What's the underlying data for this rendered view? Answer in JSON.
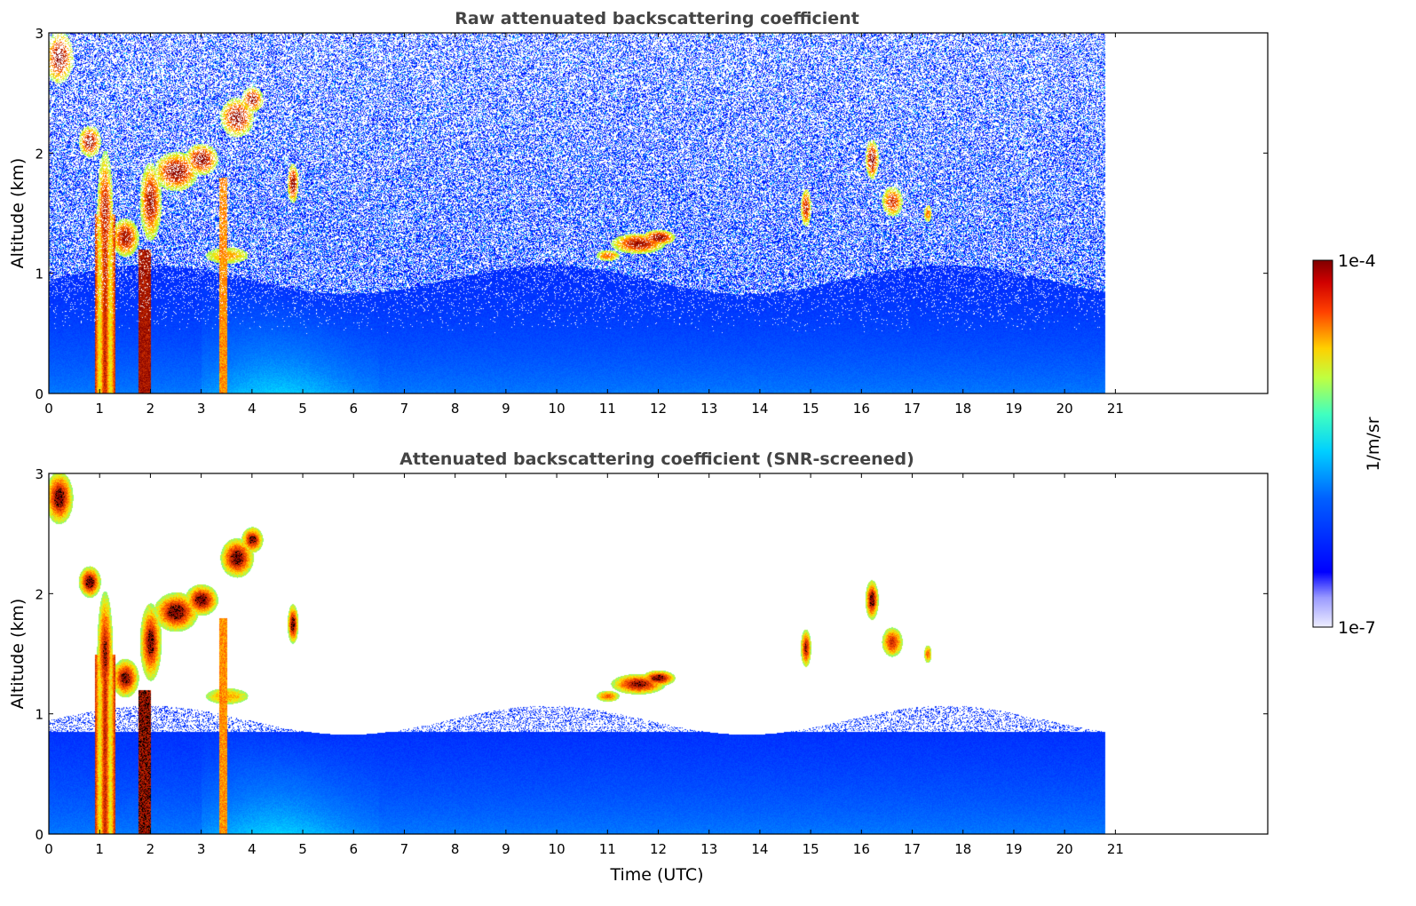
{
  "chart_data": [
    {
      "type": "heatmap",
      "title": "Raw attenuated backscattering coefficient",
      "xlabel": "",
      "ylabel": "Altitude (km)",
      "xlim": [
        0,
        24
      ],
      "ylim": [
        0,
        3
      ],
      "xticks": [
        "0",
        "1",
        "2",
        "3",
        "4",
        "5",
        "6",
        "7",
        "8",
        "9",
        "10",
        "11",
        "12",
        "13",
        "14",
        "15",
        "16",
        "17",
        "18",
        "19",
        "20",
        "21"
      ],
      "yticks": [
        "0",
        "1",
        "2",
        "3"
      ],
      "data_end_hour": 20.8,
      "snr_screened": false,
      "features": [
        {
          "name": "boundary-layer aerosol",
          "time": [
            0,
            20.8
          ],
          "altitude_km": [
            0,
            1.0
          ]
        },
        {
          "name": "cloud",
          "time": [
            0.9,
            4.2
          ],
          "altitude_km": [
            1.0,
            3.0
          ]
        },
        {
          "name": "cloud",
          "time": [
            11.0,
            12.5
          ],
          "altitude_km": [
            1.1,
            1.45
          ]
        },
        {
          "name": "cloud",
          "time": [
            14.6,
            17.4
          ],
          "altitude_km": [
            1.3,
            2.2
          ]
        }
      ]
    },
    {
      "type": "heatmap",
      "title": "Attenuated backscattering coefficient (SNR-screened)",
      "xlabel": "Time (UTC)",
      "ylabel": "Altitude (km)",
      "xlim": [
        0,
        24
      ],
      "ylim": [
        0,
        3
      ],
      "xticks": [
        "0",
        "1",
        "2",
        "3",
        "4",
        "5",
        "6",
        "7",
        "8",
        "9",
        "10",
        "11",
        "12",
        "13",
        "14",
        "15",
        "16",
        "17",
        "18",
        "19",
        "20",
        "21"
      ],
      "yticks": [
        "0",
        "1",
        "2",
        "3"
      ],
      "data_end_hour": 20.8,
      "snr_screened": true
    }
  ],
  "colorbar": {
    "label": "1/m/sr",
    "max_label": "1e-4",
    "min_label": "1e-7",
    "scale": "log",
    "range": [
      1e-07,
      0.0001
    ]
  }
}
